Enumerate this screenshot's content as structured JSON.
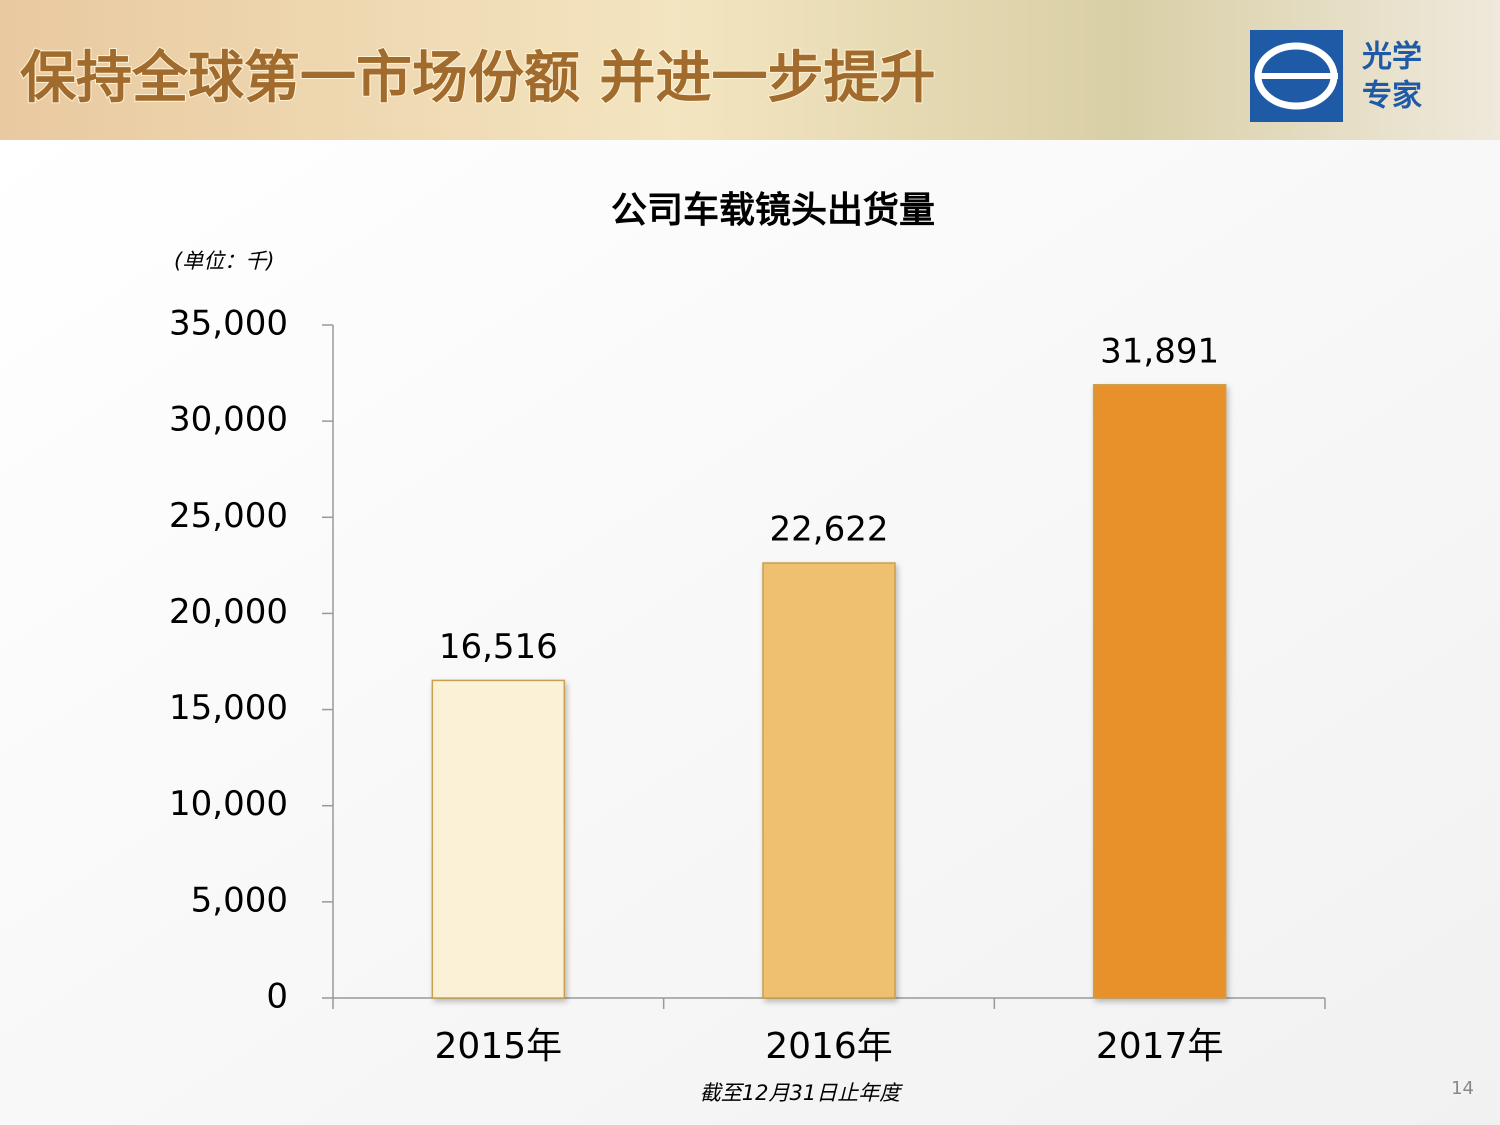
{
  "header": {
    "title": "保持全球第一市场份额  并进一步提升",
    "logo_text": [
      "光学",
      "专家"
    ]
  },
  "chart_data": {
    "type": "bar",
    "title": "公司车载镜头出货量",
    "unit_note": "(单位：千)",
    "categories": [
      "2015年",
      "2016年",
      "2017年"
    ],
    "values": [
      16516,
      22622,
      31891
    ],
    "value_labels": [
      "16,516",
      "22,622",
      "31,891"
    ],
    "colors": [
      "#fbf1d6",
      "#eec070",
      "#e8902a"
    ],
    "ylim": [
      0,
      35000
    ],
    "yticks": [
      0,
      {
        "value": 5000,
        "label": "5,000"
      },
      {
        "value": 10000,
        "label": "10,000"
      },
      {
        "value": 15000,
        "label": "15,000"
      },
      {
        "value": 20000,
        "label": "20,000"
      },
      {
        "value": 25000,
        "label": "25,000"
      },
      {
        "value": 30000,
        "label": "30,000"
      },
      {
        "value": 35000,
        "label": "35,000"
      }
    ],
    "grid": false,
    "footnote": "截至12月31日止年度"
  },
  "page_number": "14"
}
